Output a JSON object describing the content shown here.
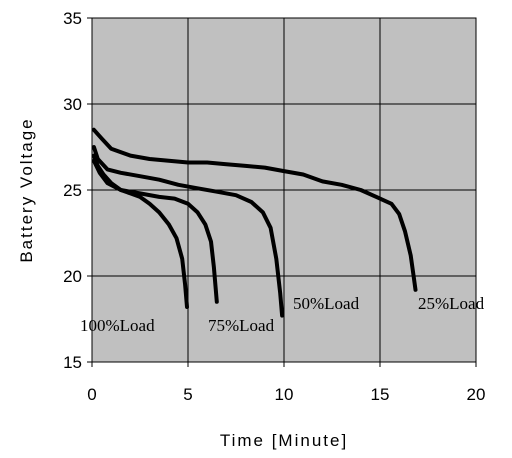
{
  "chart_data": {
    "type": "line",
    "title": "",
    "xlabel": "Time [Minute]",
    "ylabel": "Battery Voltage",
    "xlim": [
      0,
      20
    ],
    "ylim": [
      15,
      35
    ],
    "xticks": [
      "0",
      "5",
      "10",
      "15",
      "20"
    ],
    "yticks": [
      "15",
      "20",
      "25",
      "30",
      "35"
    ],
    "grid": true,
    "plot_background": "#c0c0c0",
    "line_color": "#000000",
    "series": [
      {
        "name": "100%Load",
        "points": [
          [
            0.1,
            27.0
          ],
          [
            0.3,
            26.4
          ],
          [
            0.6,
            25.9
          ],
          [
            1.0,
            25.4
          ],
          [
            1.5,
            25.0
          ],
          [
            2.0,
            24.8
          ],
          [
            2.5,
            24.6
          ],
          [
            3.0,
            24.2
          ],
          [
            3.5,
            23.7
          ],
          [
            4.0,
            23.0
          ],
          [
            4.4,
            22.2
          ],
          [
            4.7,
            21.0
          ],
          [
            4.85,
            19.5
          ],
          [
            4.95,
            18.2
          ]
        ]
      },
      {
        "name": "75%Load",
        "points": [
          [
            0.1,
            26.7
          ],
          [
            0.4,
            26.0
          ],
          [
            0.8,
            25.4
          ],
          [
            1.5,
            25.0
          ],
          [
            2.5,
            24.8
          ],
          [
            3.5,
            24.6
          ],
          [
            4.3,
            24.5
          ],
          [
            5.0,
            24.2
          ],
          [
            5.5,
            23.7
          ],
          [
            5.9,
            23.0
          ],
          [
            6.2,
            22.0
          ],
          [
            6.35,
            20.5
          ],
          [
            6.45,
            19.2
          ],
          [
            6.5,
            18.5
          ]
        ]
      },
      {
        "name": "50%Load",
        "points": [
          [
            0.1,
            27.5
          ],
          [
            0.3,
            26.8
          ],
          [
            0.8,
            26.2
          ],
          [
            1.5,
            26.0
          ],
          [
            2.5,
            25.8
          ],
          [
            3.5,
            25.6
          ],
          [
            4.5,
            25.3
          ],
          [
            5.5,
            25.1
          ],
          [
            6.5,
            24.9
          ],
          [
            7.5,
            24.7
          ],
          [
            8.3,
            24.3
          ],
          [
            8.9,
            23.7
          ],
          [
            9.3,
            22.8
          ],
          [
            9.6,
            21.0
          ],
          [
            9.8,
            19.0
          ],
          [
            9.9,
            17.7
          ]
        ]
      },
      {
        "name": "25%Load",
        "points": [
          [
            0.1,
            28.5
          ],
          [
            0.5,
            28.0
          ],
          [
            1.0,
            27.4
          ],
          [
            2.0,
            27.0
          ],
          [
            3.0,
            26.8
          ],
          [
            4.0,
            26.7
          ],
          [
            5.0,
            26.6
          ],
          [
            6.0,
            26.6
          ],
          [
            7.0,
            26.5
          ],
          [
            8.0,
            26.4
          ],
          [
            9.0,
            26.3
          ],
          [
            10.0,
            26.1
          ],
          [
            11.0,
            25.9
          ],
          [
            12.0,
            25.5
          ],
          [
            13.0,
            25.3
          ],
          [
            14.0,
            25.0
          ],
          [
            15.0,
            24.5
          ],
          [
            15.6,
            24.2
          ],
          [
            16.0,
            23.6
          ],
          [
            16.3,
            22.6
          ],
          [
            16.6,
            21.2
          ],
          [
            16.75,
            20.0
          ],
          [
            16.85,
            19.2
          ]
        ]
      }
    ],
    "labels": [
      "100%Load",
      "75%Load",
      "50%Load",
      "25%Load"
    ]
  }
}
